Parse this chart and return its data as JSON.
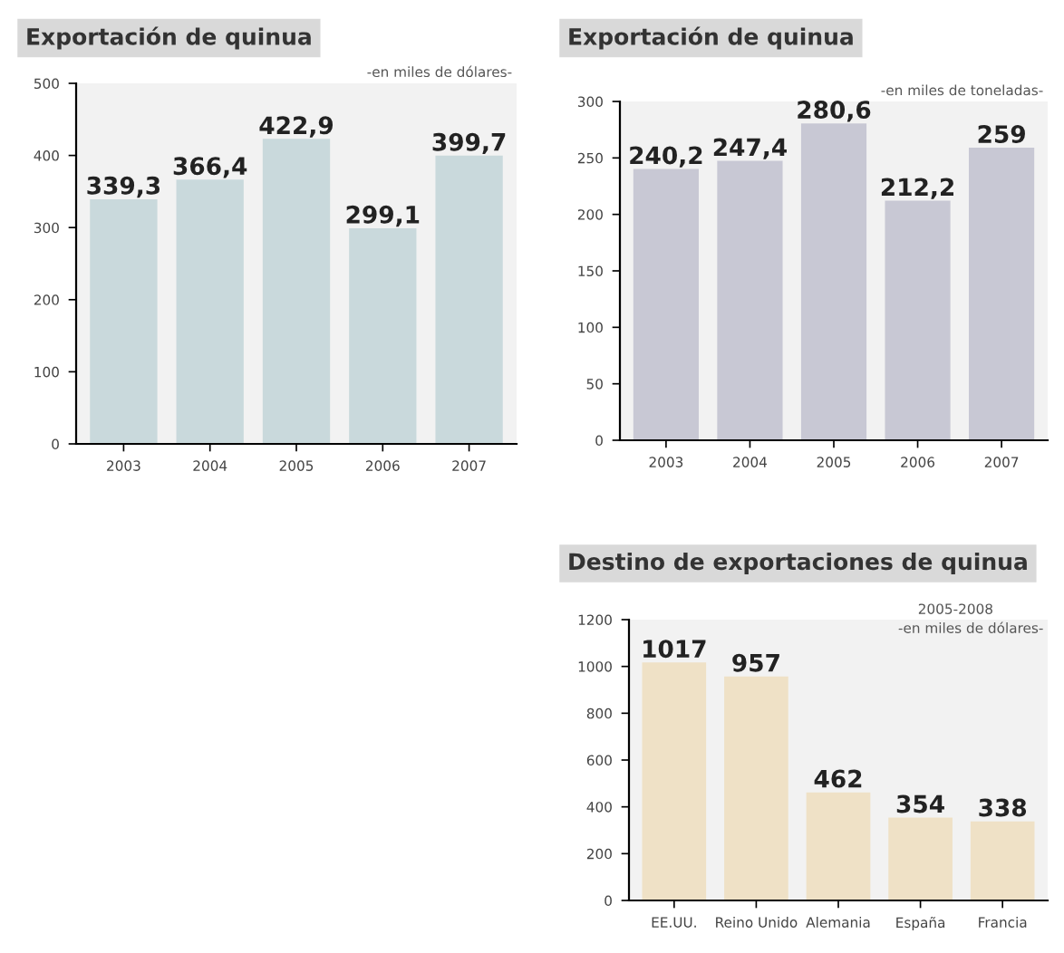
{
  "chart_data": [
    {
      "type": "bar",
      "title": "Exportación de quinua",
      "subtitle": "-en miles de dólares-",
      "categories": [
        "2003",
        "2004",
        "2005",
        "2006",
        "2007"
      ],
      "series": [
        {
          "color": "#c9d9dc",
          "values": [
            339.3,
            366.4,
            422.9,
            299.1,
            399.7
          ],
          "value_labels": [
            "339,3",
            "366,4",
            "422,9",
            "299,1",
            "399,7"
          ]
        }
      ],
      "ylim": [
        0,
        500
      ],
      "yticks": [
        0,
        100,
        200,
        300,
        400,
        500
      ]
    },
    {
      "type": "bar",
      "title": "Exportación de quinua",
      "subtitle": "-en miles de toneladas-",
      "categories": [
        "2003",
        "2004",
        "2005",
        "2006",
        "2007"
      ],
      "series": [
        {
          "color": "#c8c8d4",
          "values": [
            240.2,
            247.4,
            280.6,
            212.2,
            259
          ],
          "value_labels": [
            "240,2",
            "247,4",
            "280,6",
            "212,2",
            "259"
          ]
        }
      ],
      "ylim": [
        0,
        300
      ],
      "yticks": [
        0,
        50,
        100,
        150,
        200,
        250,
        300
      ]
    },
    {
      "type": "bar",
      "title": "Destino de exportaciones de quinua",
      "subtitle": "-en miles de dólares-",
      "annotations": [
        "2005-2008"
      ],
      "categories": [
        "EE.UU.",
        "Reino Unido",
        "Alemania",
        "España",
        "Francia"
      ],
      "series": [
        {
          "color": "#efe1c6",
          "values": [
            1017,
            957,
            462,
            354,
            338
          ],
          "value_labels": [
            "1017",
            "957",
            "462",
            "354",
            "338"
          ]
        }
      ],
      "ylim": [
        0,
        1200
      ],
      "yticks": [
        0,
        200,
        400,
        600,
        800,
        1000,
        1200
      ]
    }
  ]
}
